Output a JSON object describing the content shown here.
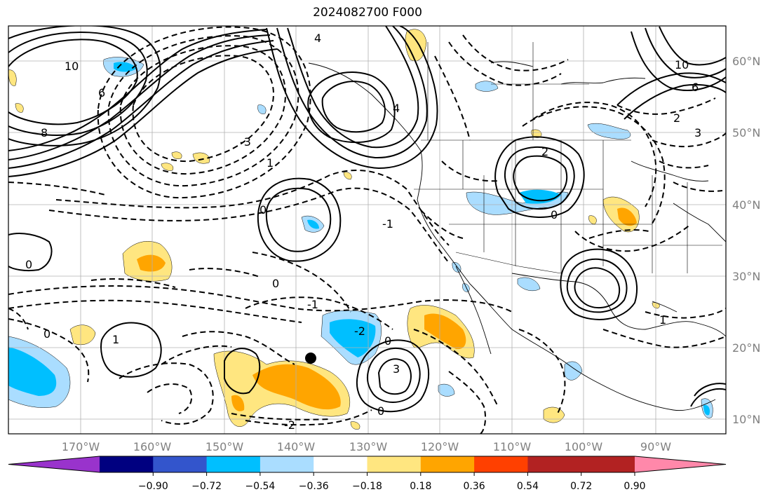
{
  "title": "2024082700 F000",
  "map": {
    "lon_labels": [
      "170°W",
      "160°W",
      "150°W",
      "140°W",
      "130°W",
      "120°W",
      "110°W",
      "100°W",
      "90°W"
    ],
    "lat_labels": [
      "60°N",
      "50°N",
      "40°N",
      "30°N",
      "20°N",
      "10°N"
    ],
    "contour_labels": [
      "10",
      "8",
      "6",
      "4",
      "2",
      "0",
      "-1",
      "-2",
      "-3",
      "1",
      "2",
      "3",
      "4",
      "6",
      "8",
      "10"
    ]
  },
  "colorbar": {
    "ticks": [
      "−0.90",
      "−0.72",
      "−0.54",
      "−0.36",
      "−0.18",
      "0.18",
      "0.36",
      "0.54",
      "0.72",
      "0.90"
    ],
    "colors": [
      "#9933cc",
      "#000080",
      "#3355cc",
      "#00bfff",
      "#aaddff",
      "#ffffff",
      "#ffe680",
      "#ffa500",
      "#ff4000",
      "#b22222",
      "#ff88aa"
    ]
  },
  "colors": {
    "pos1": "#ffe680",
    "pos2": "#ffa500",
    "neg1": "#aaddff",
    "neg2": "#00bfff"
  }
}
